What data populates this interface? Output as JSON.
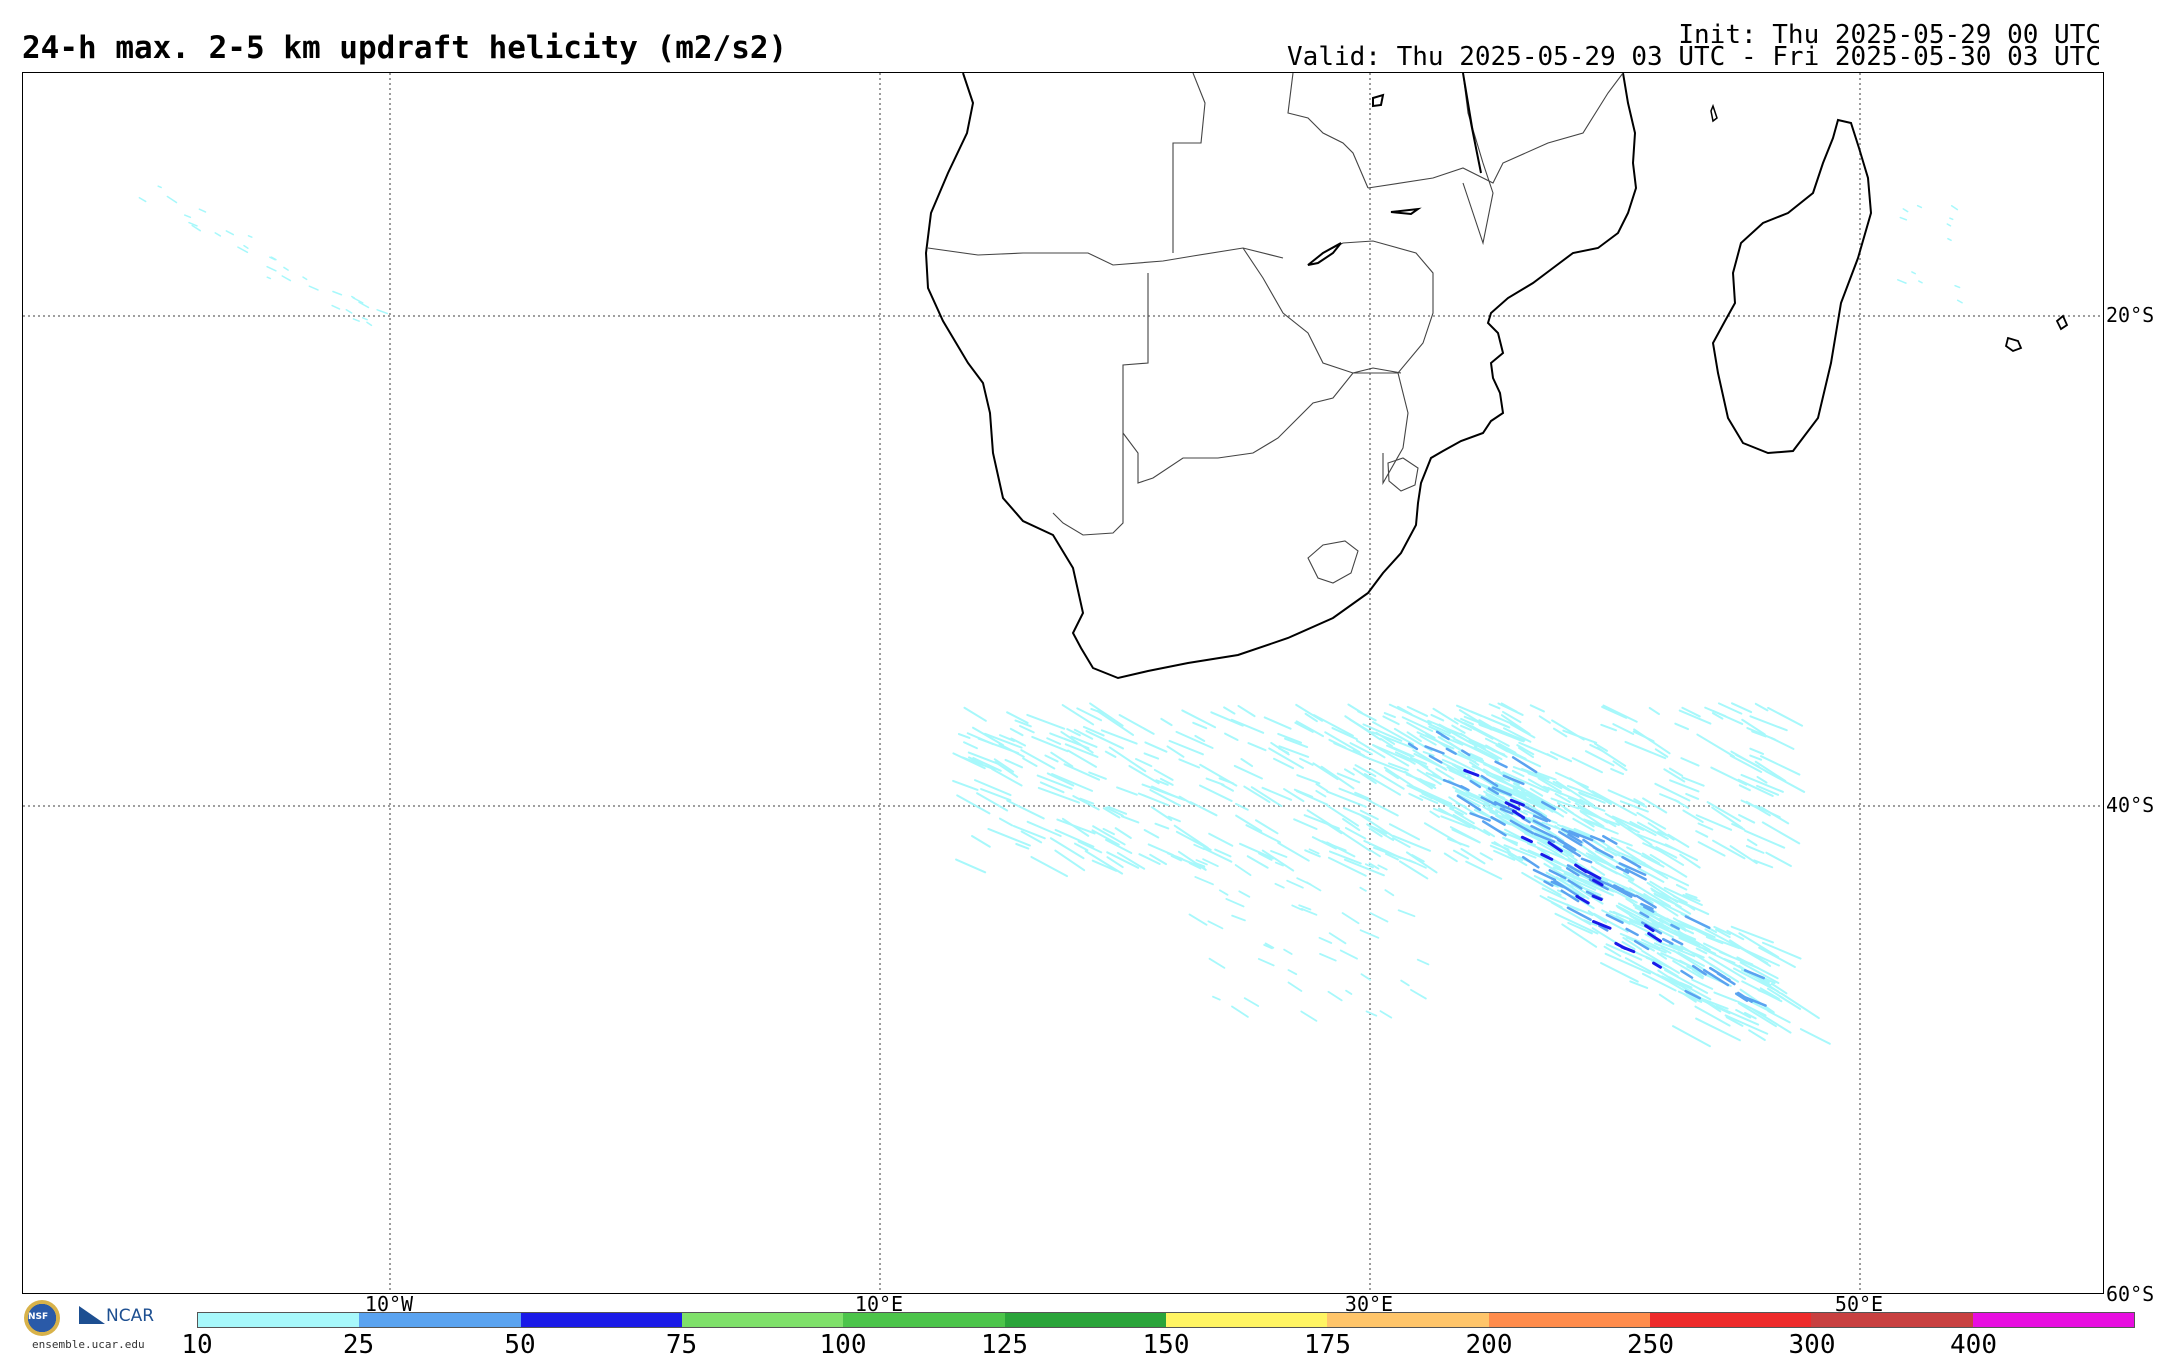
{
  "header": {
    "title": "24-h max. 2-5 km updraft helicity (m2/s2)",
    "init": "Init: Thu 2025-05-29 00 UTC",
    "valid": "Valid: Thu 2025-05-29 03 UTC - Fri 2025-05-30 03 UTC"
  },
  "map": {
    "lat_labels": [
      "20°S",
      "40°S",
      "60°S"
    ],
    "lon_labels": [
      "10°W",
      "10°E",
      "30°E",
      "50°E"
    ]
  },
  "colorbar": {
    "ticks": [
      "10",
      "25",
      "50",
      "75",
      "100",
      "125",
      "150",
      "175",
      "200",
      "250",
      "300",
      "400"
    ],
    "colors": [
      "#a7f8fb",
      "#5aa3f0",
      "#1a1ae8",
      "#7fe06a",
      "#4cc44a",
      "#2aa43a",
      "#fff462",
      "#ffc56a",
      "#ff8c4c",
      "#ee2a2a",
      "#c84040",
      "#e80ee0"
    ]
  },
  "logos": {
    "nsf": "NSF",
    "ncar": "NCAR",
    "url": "ensemble.ucar.edu"
  }
}
